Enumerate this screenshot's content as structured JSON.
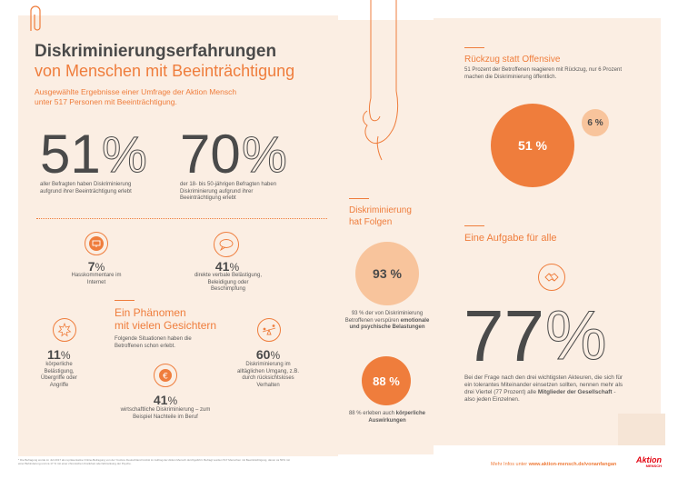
{
  "header": {
    "title": "Diskriminierungserfahrungen",
    "subtitle": "von Menschen mit Beeinträchtigung",
    "intro": "Ausgewählte Ergebnisse einer Umfrage der Aktion Mensch unter 517 Personen mit Beeinträchtigung."
  },
  "stats_top": [
    {
      "value": "51",
      "unit": "%",
      "text": "aller Befragten haben Diskriminierung aufgrund ihrer Beeinträchtigung erlebt"
    },
    {
      "value": "70",
      "unit": "%",
      "text": "der 18- bis 50-jährigen Befragten haben Diskriminierung aufgrund ihrer Beeinträchtigung erlebt"
    }
  ],
  "icons": [
    "monitor-icon",
    "speech-bubble-icon",
    "explosion-icon",
    "euro-coin-icon",
    "seesaw-icon",
    "handshake-icon"
  ],
  "stat_7": {
    "value": "7",
    "unit": "%",
    "text": "Hasskommentare im Internet"
  },
  "stat_41a": {
    "value": "41",
    "unit": "%",
    "text": "direkte verbale Belästigung, Beleidigung oder Beschimpfung"
  },
  "phaenomen": {
    "title_1": "Ein Phänomen",
    "title_2": "mit vielen Gesichtern",
    "intro": "Folgende Situationen haben die Betroffenen schon erlebt."
  },
  "stat_11": {
    "value": "11",
    "unit": "%",
    "text": "körperliche Belästigung, Übergriffe oder Angriffe"
  },
  "stat_60": {
    "value": "60",
    "unit": "%",
    "text": "Diskriminierung im alltäglichen Umgang, z.B. durch rücksichtsloses Verhalten"
  },
  "stat_41b": {
    "value": "41",
    "unit": "%",
    "text": "wirtschaftliche Diskriminierung – zum Beispiel Nachteile im Beruf"
  },
  "folgen": {
    "title_1": "Diskriminierung",
    "title_2": "hat Folgen",
    "c93": "93 %",
    "c93_text_a": "93 % der von Diskriminierung Betroffenen verspüren",
    "c93_text_b": "emotionale und psychische Belastungen",
    "c88": "88 %",
    "c88_text_a": "88 % erleben auch",
    "c88_text_b": "körperliche Auswirkungen"
  },
  "rueckzug": {
    "title": "Rückzug statt Offensive",
    "text": "51 Prozent der Betroffenen reagieren mit Rückzug, nur 6 Prozent machen die Diskriminierung öffentlich.",
    "c51": "51 %",
    "c6": "6 %"
  },
  "aufgabe": {
    "title": "Eine Aufgabe für alle",
    "value": "77",
    "unit": "%",
    "text_a": "Bei der Frage nach den drei wichtigsten Akteuren, die sich für ein tolerantes Miteinander einsetzen sollten, nennen mehr als drei Viertel (77 Prozent) alle",
    "text_b": "Mitglieder der Gesellschaft",
    "text_c": "- also jeden Einzelnen."
  },
  "footer": {
    "note": "* Die Befragung wurde im Juli 2017 als repräsentative Online-Befragung von der YouGov Deutschland GmbH im Auftrag der Aktion Mensch durchgeführt. Befragt wurden 517 Menschen mit Beeinträchtigung, davon ca 50% mit einer Behinderung und ca 17 % mit einer chronischen Krankheit oder Erkrankung der Psyche.",
    "more_prefix": "Mehr Infos unter",
    "more_link": "www.aktion-mensch.de/vonanfangan",
    "logo_1": "Aktion",
    "logo_2": "MENSCH"
  },
  "colors": {
    "accent": "#ef7d3c",
    "light": "#f8c49c",
    "paper": "#fbeee3",
    "text": "#4a4a4a"
  }
}
